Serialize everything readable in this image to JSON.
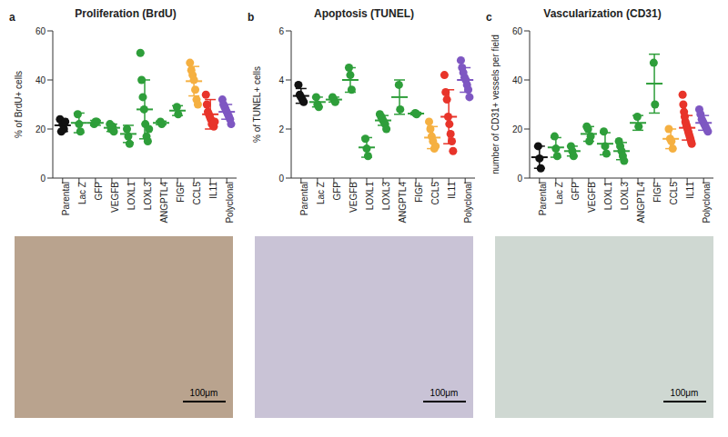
{
  "chart_data": [
    {
      "type": "scatter",
      "panel": "a",
      "title": "Proliferation (BrdU)",
      "y_label": "% of BrdU+ cells",
      "ylim": [
        0,
        60
      ],
      "yticks": [
        0,
        20,
        40,
        60
      ],
      "groups": [
        {
          "name": "Parental",
          "color": "#111111",
          "values": [
            24,
            19,
            22,
            20,
            23
          ],
          "mean": 21.5,
          "sd": 2.5
        },
        {
          "name": "Lac Z",
          "color": "#2e9e3a",
          "values": [
            26,
            22,
            19
          ],
          "mean": 22.5,
          "sd": 4
        },
        {
          "name": "GFP",
          "color": "#2e9e3a",
          "values": [
            22,
            23,
            23
          ],
          "mean": 22.5,
          "sd": 1
        },
        {
          "name": "VEGFB",
          "color": "#2e9e3a",
          "values": [
            22,
            20,
            21,
            19
          ],
          "mean": 20.5,
          "sd": 1.5
        },
        {
          "name": "LOXL1",
          "color": "#2e9e3a",
          "values": [
            20,
            17,
            14
          ],
          "mean": 18,
          "sd": 3.5
        },
        {
          "name": "LOXL3",
          "color": "#2e9e3a",
          "values": [
            51,
            40,
            33,
            28,
            22,
            17,
            15,
            20
          ],
          "mean": 28,
          "sd": 12
        },
        {
          "name": "ANGPTL4",
          "color": "#2e9e3a",
          "values": [
            23,
            22
          ],
          "mean": 22.5,
          "sd": 0.7
        },
        {
          "name": "FIGF",
          "color": "#2e9e3a",
          "values": [
            29,
            26
          ],
          "mean": 27.5,
          "sd": 2
        },
        {
          "name": "CCL5",
          "color": "#f5b041",
          "values": [
            47,
            44,
            42,
            40,
            36,
            32,
            30
          ],
          "mean": 39.5,
          "sd": 6
        },
        {
          "name": "IL11",
          "color": "#e8342a",
          "values": [
            34,
            30,
            27,
            26,
            25,
            24,
            22,
            22,
            21,
            23
          ],
          "mean": 26,
          "sd": 6
        },
        {
          "name": "Polyclonal",
          "color": "#7e57c2",
          "values": [
            32,
            30,
            29,
            28,
            27,
            26,
            25,
            24,
            22
          ],
          "mean": 27,
          "sd": 3
        }
      ]
    },
    {
      "type": "scatter",
      "panel": "b",
      "title": "Apoptosis (TUNEL)",
      "y_label": "% of TUNEL+ cells",
      "ylim": [
        0,
        6
      ],
      "yticks": [
        0,
        2,
        4,
        6
      ],
      "groups": [
        {
          "name": "Parental",
          "color": "#111111",
          "values": [
            3.8,
            3.4,
            3.3,
            3.2,
            3.1
          ],
          "mean": 3.35,
          "sd": 0.3
        },
        {
          "name": "Lac Z",
          "color": "#2e9e3a",
          "values": [
            3.3,
            3.0,
            2.9
          ],
          "mean": 3.1,
          "sd": 0.2
        },
        {
          "name": "GFP",
          "color": "#2e9e3a",
          "values": [
            3.3,
            3.2,
            3.1
          ],
          "mean": 3.2,
          "sd": 0.1
        },
        {
          "name": "VEGFB",
          "color": "#2e9e3a",
          "values": [
            4.5,
            4.2,
            3.6
          ],
          "mean": 4.0,
          "sd": 0.5
        },
        {
          "name": "LOXL1",
          "color": "#2e9e3a",
          "values": [
            1.6,
            1.2,
            0.9
          ],
          "mean": 1.25,
          "sd": 0.4
        },
        {
          "name": "LOXL3",
          "color": "#2e9e3a",
          "values": [
            2.6,
            2.5,
            2.4,
            2.3,
            2.2,
            2.0
          ],
          "mean": 2.35,
          "sd": 0.2
        },
        {
          "name": "ANGPTL4",
          "color": "#2e9e3a",
          "values": [
            3.8,
            2.8
          ],
          "mean": 3.3,
          "sd": 0.7
        },
        {
          "name": "FIGF",
          "color": "#2e9e3a",
          "values": [
            2.65,
            2.6
          ],
          "mean": 2.63,
          "sd": 0.05
        },
        {
          "name": "CCL5",
          "color": "#f5b041",
          "values": [
            2.3,
            2.0,
            1.7,
            1.5,
            1.2,
            1.3
          ],
          "mean": 1.65,
          "sd": 0.45
        },
        {
          "name": "IL11",
          "color": "#e8342a",
          "values": [
            4.2,
            3.5,
            3.2,
            2.5,
            2.2,
            1.8,
            1.5,
            1.1
          ],
          "mean": 2.5,
          "sd": 1.1
        },
        {
          "name": "Polyclonal",
          "color": "#7e57c2",
          "values": [
            4.8,
            4.5,
            4.3,
            4.1,
            4.0,
            3.8,
            3.6,
            3.3
          ],
          "mean": 4.0,
          "sd": 0.5
        }
      ]
    },
    {
      "type": "scatter",
      "panel": "c",
      "title": "Vascularization (CD31)",
      "y_label": "number of CD31+ vessels per field",
      "ylim": [
        0,
        60
      ],
      "yticks": [
        0,
        20,
        40,
        60
      ],
      "groups": [
        {
          "name": "Parental",
          "color": "#111111",
          "values": [
            13,
            8,
            4
          ],
          "mean": 8.5,
          "sd": 4.5
        },
        {
          "name": "Lac Z",
          "color": "#2e9e3a",
          "values": [
            17,
            12,
            9
          ],
          "mean": 12.5,
          "sd": 4
        },
        {
          "name": "GFP",
          "color": "#2e9e3a",
          "values": [
            13,
            11,
            9
          ],
          "mean": 11,
          "sd": 2
        },
        {
          "name": "VEGFB",
          "color": "#2e9e3a",
          "values": [
            21,
            20,
            15,
            17
          ],
          "mean": 18,
          "sd": 3
        },
        {
          "name": "LOXL1",
          "color": "#2e9e3a",
          "values": [
            19,
            13,
            10
          ],
          "mean": 14,
          "sd": 4.5
        },
        {
          "name": "LOXL3",
          "color": "#2e9e3a",
          "values": [
            15,
            13,
            11,
            9,
            7
          ],
          "mean": 11,
          "sd": 3.5
        },
        {
          "name": "ANGPTL4",
          "color": "#2e9e3a",
          "values": [
            25,
            21
          ],
          "mean": 22.5,
          "sd": 3
        },
        {
          "name": "FIGF",
          "color": "#2e9e3a",
          "values": [
            47,
            30
          ],
          "mean": 38.5,
          "sd": 12
        },
        {
          "name": "CCL5",
          "color": "#f5b041",
          "values": [
            20,
            16,
            15,
            12
          ],
          "mean": 16,
          "sd": 4
        },
        {
          "name": "IL11",
          "color": "#e8342a",
          "values": [
            34,
            30,
            27,
            25,
            23,
            22,
            21,
            20,
            19,
            18,
            17,
            16,
            15,
            14
          ],
          "mean": 20.5,
          "sd": 5
        },
        {
          "name": "Polyclonal",
          "color": "#7e57c2",
          "values": [
            28,
            26,
            24,
            23,
            22,
            21,
            20,
            19
          ],
          "mean": 22.5,
          "sd": 3
        }
      ]
    }
  ],
  "images": [
    {
      "scale_bar": "100μm"
    },
    {
      "scale_bar": "100μm"
    },
    {
      "scale_bar": "100μm"
    }
  ]
}
